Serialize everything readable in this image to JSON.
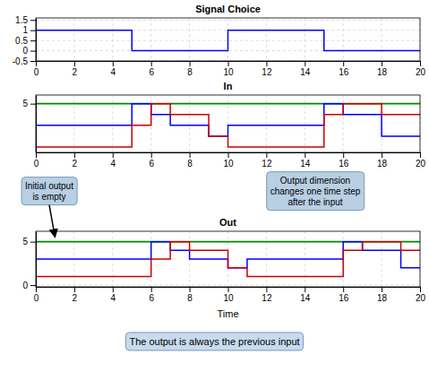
{
  "chart_data": [
    {
      "type": "line",
      "title": "Signal Choice",
      "series": [
        {
          "type": "step",
          "color": "#0000ff",
          "x": [
            0,
            5,
            5,
            10,
            10,
            15,
            15,
            20
          ],
          "values": [
            1,
            1,
            0,
            0,
            1,
            1,
            0,
            0
          ]
        }
      ],
      "xlim": [
        0,
        20
      ],
      "xticks": [
        0,
        2,
        4,
        6,
        8,
        10,
        12,
        14,
        16,
        18,
        20
      ],
      "ylim": [
        -0.5,
        1.6
      ],
      "yticks": [
        -0.5,
        0,
        0.5,
        1,
        1.5
      ],
      "grid": true
    },
    {
      "type": "line",
      "title": "In",
      "series": [
        {
          "type": "line",
          "color": "#008800",
          "x": [
            0,
            20
          ],
          "values": [
            5,
            5
          ]
        },
        {
          "type": "step",
          "color": "#0000ff",
          "x": [
            0,
            5,
            5,
            6,
            6,
            7,
            7,
            9,
            9,
            10,
            10,
            15,
            15,
            16,
            16,
            18,
            18,
            20
          ],
          "values": [
            3,
            3,
            5,
            5,
            4,
            4,
            3,
            3,
            2,
            2,
            3,
            3,
            5,
            5,
            4,
            4,
            2,
            2
          ]
        },
        {
          "type": "step",
          "color": "#cc0000",
          "x": [
            0,
            5,
            5,
            6,
            6,
            7,
            7,
            9,
            9,
            10,
            10,
            15,
            15,
            16,
            16,
            18,
            18,
            20
          ],
          "values": [
            1,
            1,
            3,
            3,
            5,
            5,
            4,
            4,
            2,
            2,
            1,
            1,
            4,
            4,
            5,
            5,
            4,
            4
          ]
        }
      ],
      "xlim": [
        0,
        20
      ],
      "xticks": [
        0,
        2,
        4,
        6,
        8,
        10,
        12,
        14,
        16,
        18,
        20
      ],
      "ylim": [
        0.5,
        5.8
      ],
      "yticks": [
        5
      ],
      "grid": true
    },
    {
      "type": "line",
      "title": "Out",
      "xlabel": "Time",
      "series": [
        {
          "type": "line",
          "color": "#008800",
          "x": [
            0,
            20
          ],
          "values": [
            5,
            5
          ]
        },
        {
          "type": "step",
          "color": "#0000ff",
          "x": [
            0,
            6,
            6,
            7,
            7,
            8,
            8,
            10,
            10,
            11,
            11,
            16,
            16,
            17,
            17,
            19,
            19,
            20
          ],
          "values": [
            3,
            3,
            5,
            5,
            4,
            4,
            3,
            3,
            2,
            2,
            3,
            3,
            5,
            5,
            4,
            4,
            2,
            2
          ]
        },
        {
          "type": "step",
          "color": "#cc0000",
          "x": [
            0,
            6,
            6,
            7,
            7,
            8,
            8,
            10,
            10,
            11,
            11,
            16,
            16,
            17,
            17,
            19,
            19,
            20
          ],
          "values": [
            1,
            1,
            3,
            3,
            5,
            5,
            4,
            4,
            2,
            2,
            1,
            1,
            4,
            4,
            5,
            5,
            4,
            4
          ]
        }
      ],
      "xlim": [
        0,
        20
      ],
      "xticks": [
        0,
        2,
        4,
        6,
        8,
        10,
        12,
        14,
        16,
        18,
        20
      ],
      "ylim": [
        -0.2,
        6.2
      ],
      "yticks": [
        0,
        5
      ],
      "grid": true,
      "annotations": [
        {
          "text": "Initial output\nis empty",
          "x": 1,
          "y": 5.5,
          "color": "#b8cfe4"
        },
        {
          "text": "Output dimension\nchanges one time step\nafter the input",
          "color": "#b8cfe4"
        },
        {
          "text": "The output is always the previous input",
          "color": "#c8dbee"
        }
      ]
    }
  ]
}
